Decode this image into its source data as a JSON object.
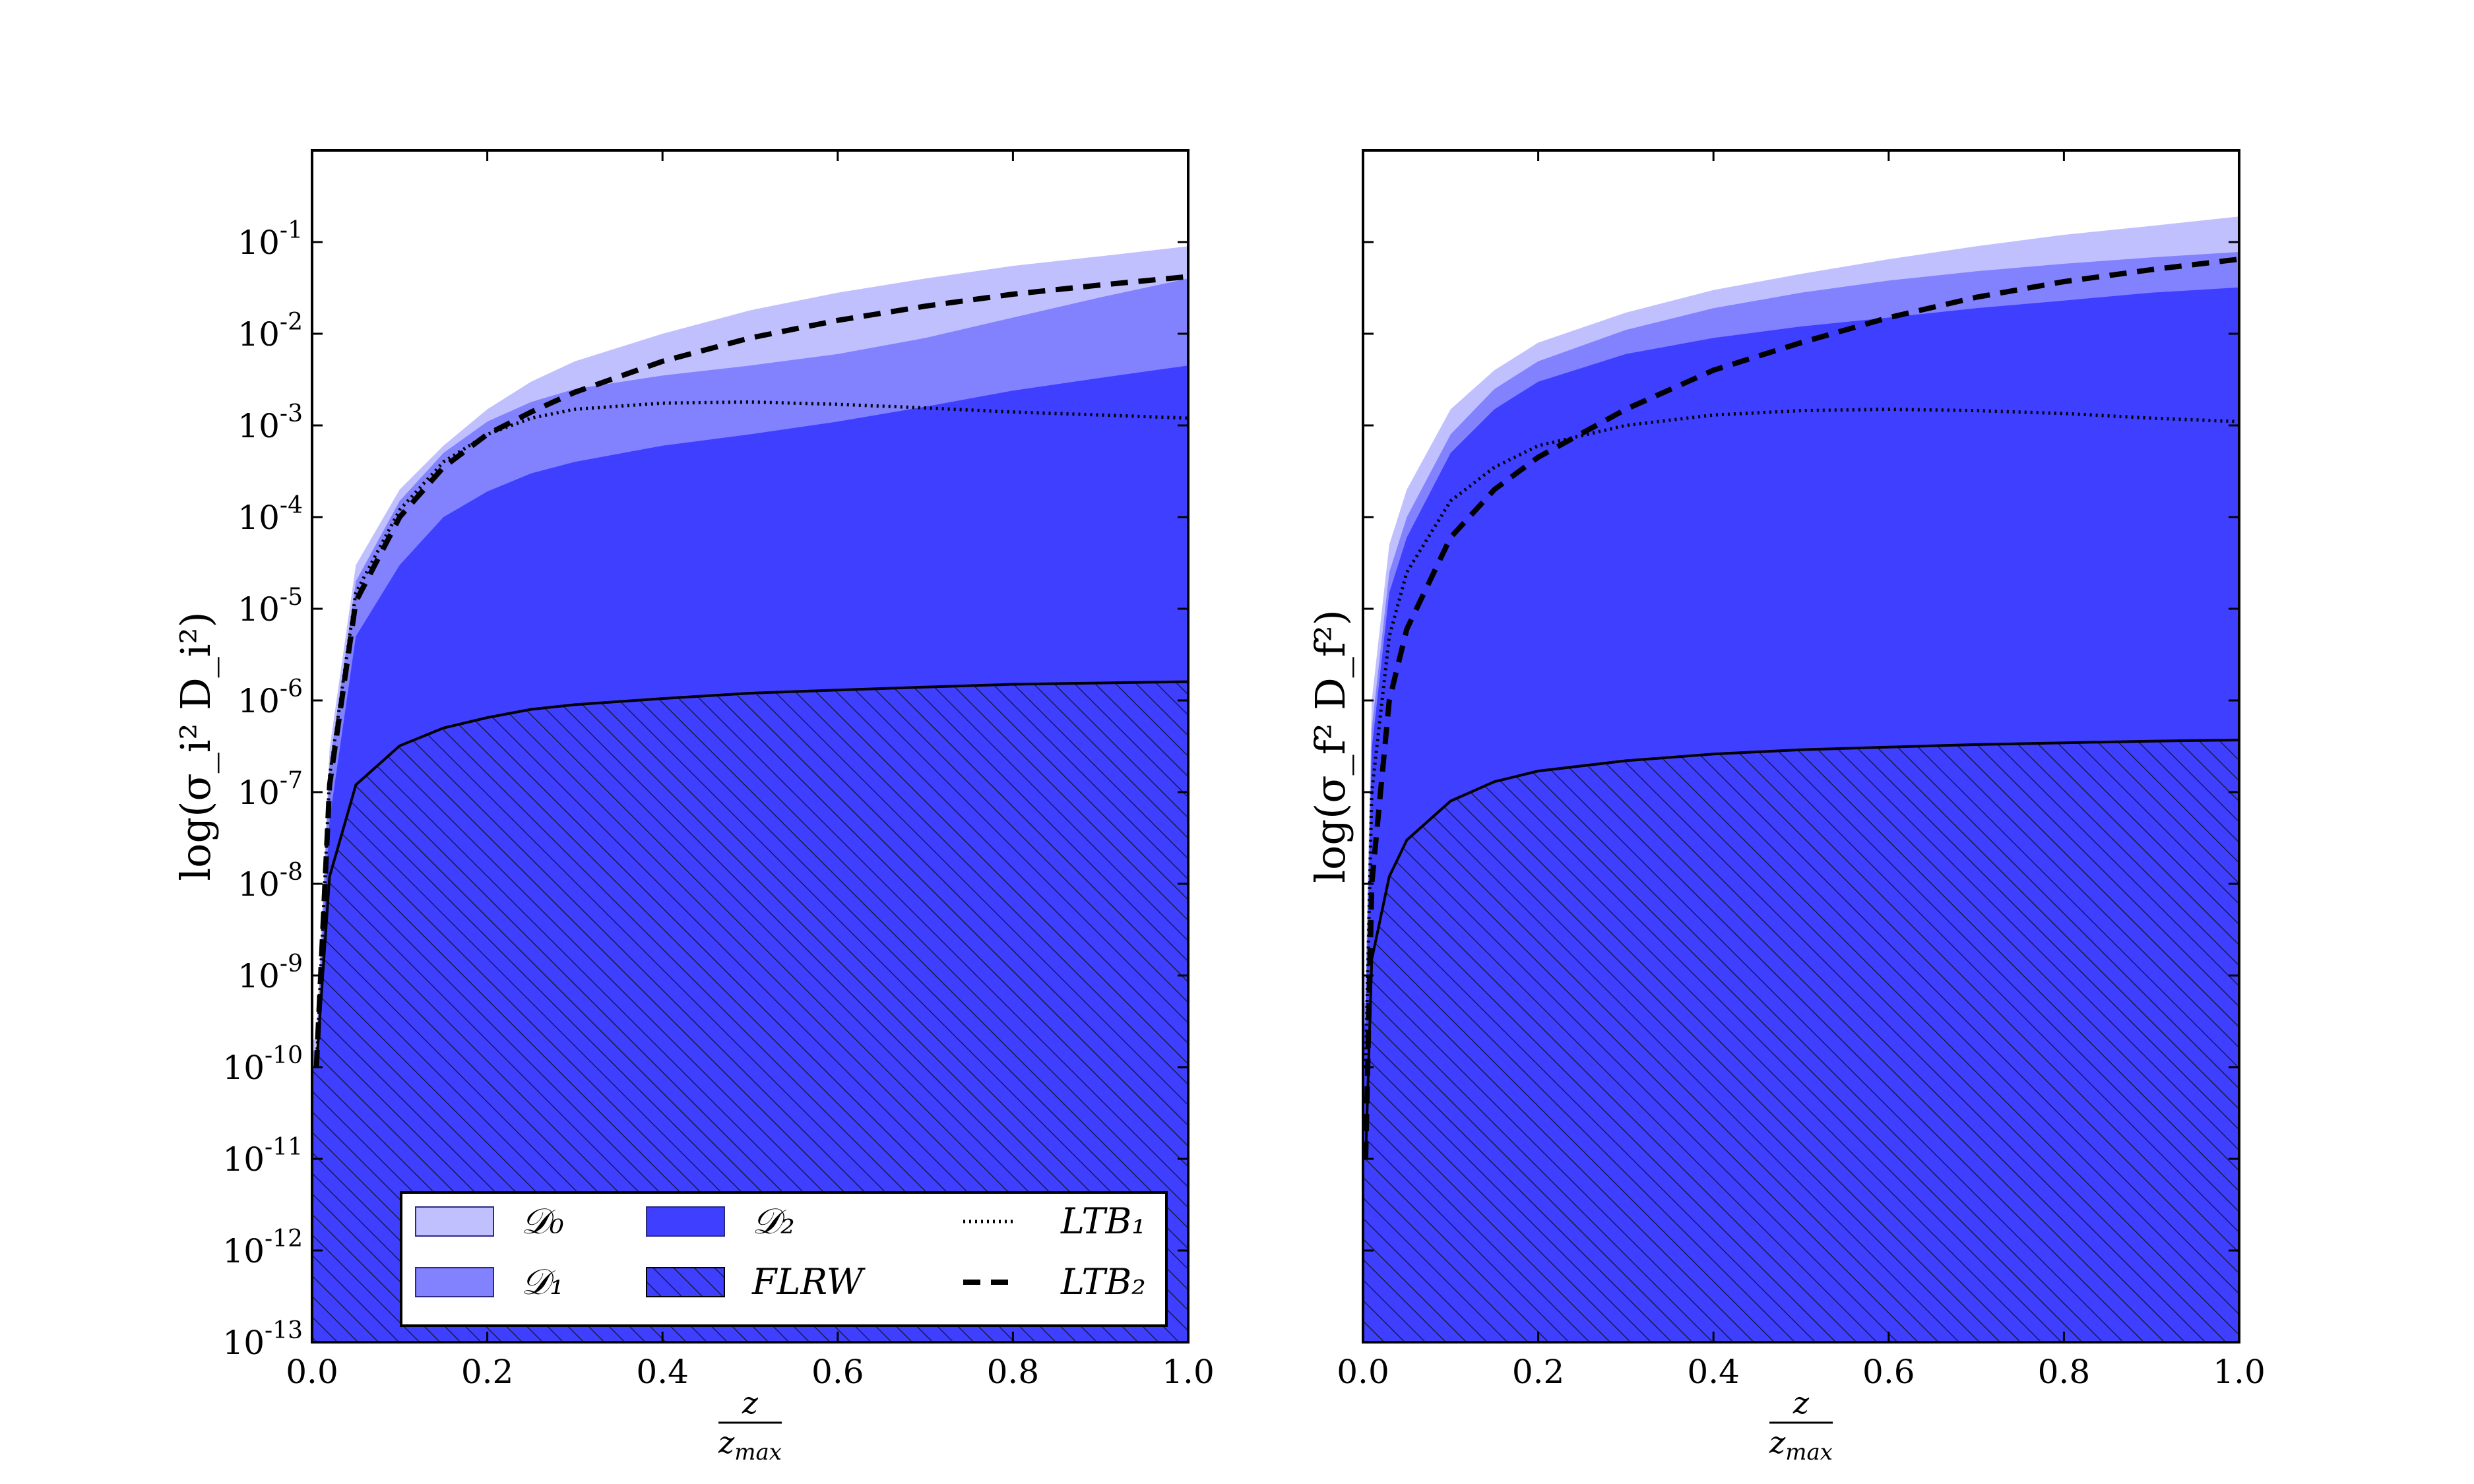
{
  "colors": {
    "D0": "#c0c0ff",
    "D1": "#8282ff",
    "D2": "#3f3fff",
    "FLRW": "#3f3fff",
    "hatch": "#1a1a4d",
    "line": "#000000"
  },
  "legend": {
    "placement": "lower-center (left panel)",
    "entries": [
      {
        "key": "D0",
        "label": "𝒟₀",
        "style": "fill"
      },
      {
        "key": "D2",
        "label": "𝒟₂",
        "style": "fill"
      },
      {
        "key": "LTB1",
        "label": "LTB₁",
        "style": "dotted"
      },
      {
        "key": "D1",
        "label": "𝒟₁",
        "style": "fill"
      },
      {
        "key": "FLRW",
        "label": "FLRW",
        "style": "hatch"
      },
      {
        "key": "LTB2",
        "label": "LTB₂",
        "style": "dashed"
      }
    ]
  },
  "chart_data": [
    {
      "type": "area",
      "ylabel": "log(σ_i² D_i²)",
      "xlabel": "z / z_max",
      "xlabel_num": "z",
      "xlabel_den": "z_max",
      "yscale": "log",
      "xlim": [
        0,
        1
      ],
      "ylim": [
        1e-13,
        1
      ],
      "grid": false,
      "show_ytick_labels": true,
      "x_ticks": [
        "0.0",
        "0.2",
        "0.4",
        "0.6",
        "0.8",
        "1.0"
      ],
      "y_ticks": [
        {
          "exp": -13,
          "label": "10-13"
        },
        {
          "exp": -12,
          "label": "10-12"
        },
        {
          "exp": -11,
          "label": "10-11"
        },
        {
          "exp": -10,
          "label": "10-10"
        },
        {
          "exp": -9,
          "label": "10-9"
        },
        {
          "exp": -8,
          "label": "10-8"
        },
        {
          "exp": -7,
          "label": "10-7"
        },
        {
          "exp": -6,
          "label": "10-6"
        },
        {
          "exp": -5,
          "label": "10-5"
        },
        {
          "exp": -4,
          "label": "10-4"
        },
        {
          "exp": -3,
          "label": "10-3"
        },
        {
          "exp": -2,
          "label": "10-2"
        },
        {
          "exp": -1,
          "label": "10-1"
        }
      ],
      "x": [
        0.005,
        0.02,
        0.05,
        0.1,
        0.15,
        0.2,
        0.25,
        0.3,
        0.4,
        0.5,
        0.6,
        0.7,
        0.8,
        0.9,
        1.0
      ],
      "series": [
        {
          "key": "D0",
          "style": "fill",
          "y": [
            2e-10,
            3e-07,
            3e-05,
            0.0002,
            0.0006,
            0.0015,
            0.003,
            0.005,
            0.01,
            0.018,
            0.028,
            0.04,
            0.055,
            0.07,
            0.09
          ]
        },
        {
          "key": "D1",
          "style": "fill",
          "y": [
            1.5e-10,
            2e-07,
            2e-05,
            0.00015,
            0.0005,
            0.0011,
            0.0018,
            0.0025,
            0.0035,
            0.0045,
            0.006,
            0.009,
            0.015,
            0.025,
            0.04
          ]
        },
        {
          "key": "D2",
          "style": "fill",
          "y": [
            1e-10,
            5e-08,
            5e-06,
            3e-05,
            0.0001,
            0.00019,
            0.0003,
            0.0004,
            0.0006,
            0.0008,
            0.0011,
            0.0016,
            0.0024,
            0.0033,
            0.0045
          ]
        },
        {
          "key": "FLRW",
          "style": "hatch",
          "y": [
            1e-10,
            1.2e-08,
            1.2e-07,
            3.2e-07,
            5e-07,
            6.5e-07,
            8e-07,
            9e-07,
            1.05e-06,
            1.2e-06,
            1.3e-06,
            1.4e-06,
            1.5e-06,
            1.55e-06,
            1.6e-06
          ]
        },
        {
          "key": "LTB1",
          "style": "dotted",
          "y": [
            1e-10,
            1.5e-07,
            1.5e-05,
            0.00012,
            0.0004,
            0.0008,
            0.0012,
            0.0015,
            0.00175,
            0.0018,
            0.0017,
            0.00155,
            0.0014,
            0.0013,
            0.0012
          ]
        },
        {
          "key": "LTB2",
          "style": "dashed",
          "y": [
            1e-10,
            1.2e-07,
            1.2e-05,
            0.0001,
            0.00035,
            0.0008,
            0.0014,
            0.0023,
            0.005,
            0.009,
            0.014,
            0.02,
            0.027,
            0.034,
            0.042
          ]
        }
      ]
    },
    {
      "type": "area",
      "ylabel": "log(σ_f² D_f²)",
      "xlabel": "z / z_max",
      "xlabel_num": "z",
      "xlabel_den": "z_max",
      "yscale": "log",
      "xlim": [
        0,
        1
      ],
      "ylim": [
        1e-13,
        1
      ],
      "grid": false,
      "show_ytick_labels": false,
      "x_ticks": [
        "0.0",
        "0.2",
        "0.4",
        "0.6",
        "0.8",
        "1.0"
      ],
      "x": [
        0.003,
        0.01,
        0.03,
        0.05,
        0.1,
        0.15,
        0.2,
        0.3,
        0.4,
        0.5,
        0.6,
        0.7,
        0.8,
        0.9,
        1.0
      ],
      "series": [
        {
          "key": "D0",
          "style": "fill",
          "y": [
            1e-09,
            1e-06,
            5e-05,
            0.0002,
            0.0015,
            0.004,
            0.008,
            0.017,
            0.03,
            0.045,
            0.065,
            0.09,
            0.12,
            0.15,
            0.19
          ]
        },
        {
          "key": "D1",
          "style": "fill",
          "y": [
            5e-10,
            5e-07,
            2.5e-05,
            0.0001,
            0.0008,
            0.0025,
            0.005,
            0.011,
            0.019,
            0.028,
            0.038,
            0.048,
            0.058,
            0.068,
            0.078
          ]
        },
        {
          "key": "D2",
          "style": "fill",
          "y": [
            3e-10,
            3e-07,
            1.5e-05,
            6e-05,
            0.0005,
            0.0015,
            0.003,
            0.006,
            0.009,
            0.012,
            0.015,
            0.019,
            0.023,
            0.028,
            0.032
          ]
        },
        {
          "key": "FLRW",
          "style": "hatch",
          "y": [
            1e-11,
            1.5e-09,
            1.2e-08,
            3e-08,
            8e-08,
            1.3e-07,
            1.7e-07,
            2.2e-07,
            2.6e-07,
            2.9e-07,
            3.1e-07,
            3.3e-07,
            3.45e-07,
            3.6e-07,
            3.7e-07
          ]
        },
        {
          "key": "LTB1",
          "style": "dotted",
          "y": [
            1e-10,
            1e-07,
            5e-06,
            2.5e-05,
            0.00015,
            0.00035,
            0.0006,
            0.001,
            0.0013,
            0.00145,
            0.0015,
            0.00145,
            0.00135,
            0.0012,
            0.0011
          ]
        },
        {
          "key": "LTB2",
          "style": "dashed",
          "y": [
            1e-11,
            1e-08,
            1e-06,
            6e-06,
            6e-05,
            0.0002,
            0.00045,
            0.0015,
            0.004,
            0.008,
            0.015,
            0.025,
            0.037,
            0.05,
            0.065
          ]
        }
      ]
    }
  ]
}
